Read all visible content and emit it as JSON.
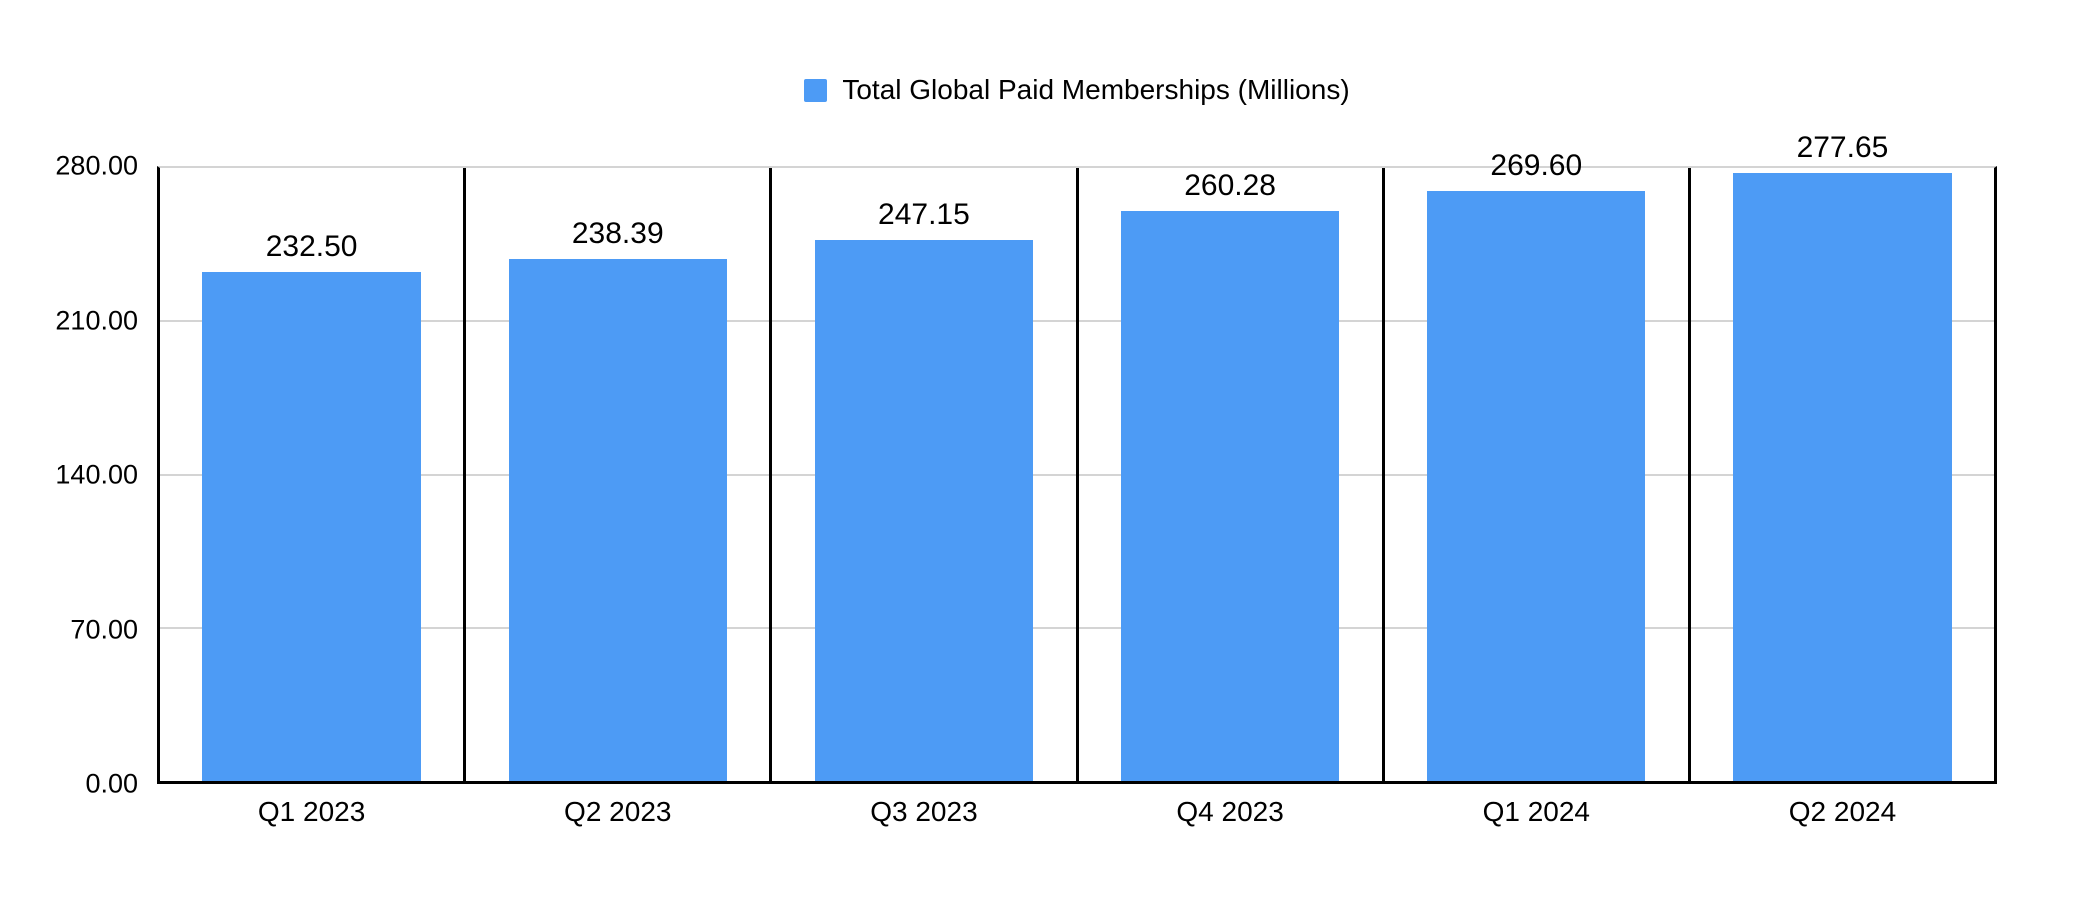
{
  "chart_data": {
    "type": "bar",
    "title": "Total Global Paid Memberships (Millions)",
    "legend": {
      "label": "Total Global Paid Memberships (Millions)",
      "position": "top-center",
      "swatch_icon": "blue-square"
    },
    "categories": [
      "Q1 2023",
      "Q2 2023",
      "Q3 2023",
      "Q4 2023",
      "Q1 2024",
      "Q2 2024"
    ],
    "series": [
      {
        "name": "Total Global Paid Memberships (Millions)",
        "values": [
          232.5,
          238.39,
          247.15,
          260.28,
          269.6,
          277.65
        ],
        "value_labels": [
          "232.50",
          "238.39",
          "247.15",
          "260.28",
          "269.60",
          "277.65"
        ]
      }
    ],
    "xlabel": "",
    "ylabel": "",
    "ylim": [
      0,
      280
    ],
    "yticks": [
      {
        "value": 0,
        "label": "0.00"
      },
      {
        "value": 70,
        "label": "70.00"
      },
      {
        "value": 140,
        "label": "140.00"
      },
      {
        "value": 210,
        "label": "210.00"
      },
      {
        "value": 280,
        "label": "280.00"
      }
    ],
    "grid": true,
    "colors": {
      "bar": "#4D9BF5",
      "gridline": "#D4D4D4",
      "axis": "#000000",
      "text": "#000000",
      "background": "#FFFFFF"
    }
  }
}
